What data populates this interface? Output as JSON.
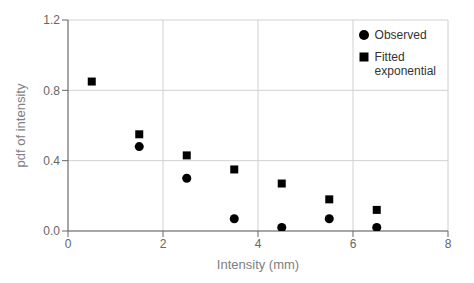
{
  "chart_data": {
    "type": "scatter",
    "xlabel": "Intensity (mm)",
    "ylabel": "pdf of intensity",
    "series": [
      {
        "name": "Observed",
        "color": "#000000",
        "marker": "circle",
        "x": [
          1.5,
          2.5,
          3.5,
          4.5,
          5.5,
          6.5
        ],
        "values": [
          0.48,
          0.3,
          0.07,
          0.02,
          0.07,
          0.02
        ]
      },
      {
        "name": "Fitted\nexponential",
        "color": "#000000",
        "marker": "square",
        "x": [
          0.5,
          1.5,
          2.5,
          3.5,
          4.5,
          5.5,
          6.5
        ],
        "values": [
          0.85,
          0.55,
          0.43,
          0.35,
          0.27,
          0.18,
          0.12
        ]
      }
    ],
    "xlim": [
      0,
      8
    ],
    "ylim": [
      0,
      1.2
    ],
    "xticks": [
      0,
      2,
      4,
      6,
      8
    ],
    "yticks": [
      {
        "value": 0.0,
        "label": "0.0"
      },
      0.4,
      0.8,
      1.2
    ],
    "grid": true,
    "legend": "upper right"
  }
}
